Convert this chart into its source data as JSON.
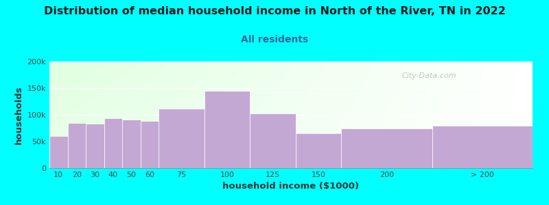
{
  "title": "Distribution of median household income in North of the River, TN in 2022",
  "subtitle": "All residents",
  "xlabel": "household income ($1000)",
  "ylabel": "households",
  "background_color": "#00FFFF",
  "bar_color": "#C4A8D4",
  "categories": [
    "10",
    "20",
    "30",
    "40",
    "50",
    "60",
    "75",
    "100",
    "125",
    "150",
    "200",
    "> 200"
  ],
  "bar_lefts": [
    0,
    10,
    20,
    30,
    40,
    50,
    60,
    85,
    110,
    135,
    160,
    210
  ],
  "bar_widths": [
    10,
    10,
    10,
    10,
    10,
    10,
    25,
    25,
    25,
    25,
    50,
    55
  ],
  "values": [
    60000,
    85000,
    83000,
    93000,
    91000,
    88000,
    112000,
    145000,
    102000,
    65000,
    75000,
    80000
  ],
  "ylim": [
    0,
    200000
  ],
  "yticks": [
    0,
    50000,
    100000,
    150000,
    200000
  ],
  "ytick_labels": [
    "0",
    "50k",
    "100k",
    "150k",
    "200k"
  ],
  "xtick_labels": [
    "10",
    "20",
    "30",
    "40",
    "50",
    "60",
    "75",
    "100",
    "125",
    "150",
    "200",
    "> 200"
  ],
  "title_fontsize": 11.5,
  "subtitle_fontsize": 10,
  "axis_label_fontsize": 9.5,
  "tick_fontsize": 8,
  "watermark_text": "City-Data.com"
}
